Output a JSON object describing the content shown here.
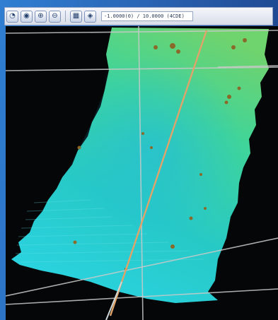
{
  "window": {
    "toolbar": {
      "buttons": [
        {
          "name": "compass-button",
          "icon": "compass-icon",
          "glyph": "◔"
        },
        {
          "name": "globe-button",
          "icon": "globe-icon",
          "glyph": "◉"
        },
        {
          "name": "zoom-in-button",
          "icon": "zoom-in-icon",
          "glyph": "⊕"
        },
        {
          "name": "zoom-out-button",
          "icon": "zoom-out-icon",
          "glyph": "⊖"
        },
        {
          "name": "layers-button",
          "icon": "layers-icon",
          "glyph": "▦"
        },
        {
          "name": "map-button",
          "icon": "map-icon",
          "glyph": "◈"
        }
      ],
      "coordinate_readout": "-1.0000(0) / 10.0000 (4CDE)"
    }
  },
  "viewport": {
    "background": "#050607",
    "surface_colors": [
      "#2ad3e0",
      "#27c9c6",
      "#3fd49a",
      "#6fd36e"
    ]
  }
}
